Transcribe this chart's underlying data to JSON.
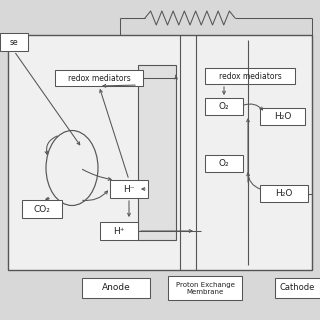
{
  "bg": "#e8e8e8",
  "lc": "#555555",
  "anode_label": "Anode",
  "membrane_label": "Proton Exchange\nMembrane",
  "cathode_label": "Cathode",
  "anode_med": "redox mediators",
  "cathode_med": "redox mediators",
  "substrate": "se",
  "H_neg": "H⁻",
  "H_pos": "H⁺",
  "CO2": "CO₂",
  "O2a": "O₂",
  "H2Oa": "H₂O",
  "O2b": "O₂",
  "H2Ob": "H₂O"
}
